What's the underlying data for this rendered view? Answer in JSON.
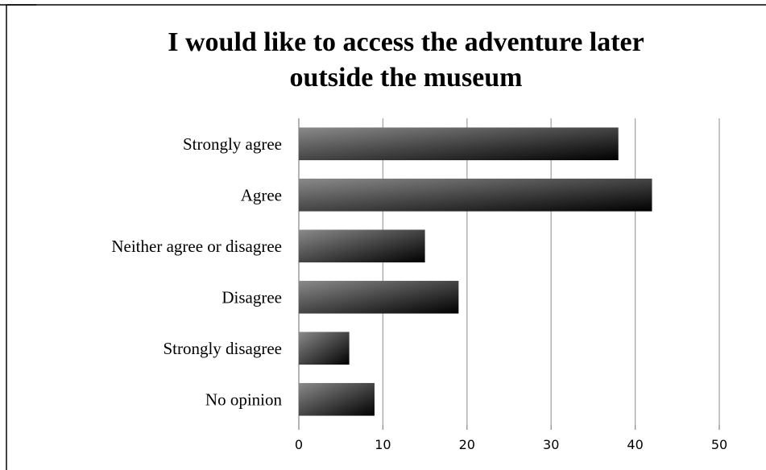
{
  "chart_data": {
    "type": "bar",
    "orientation": "horizontal",
    "title": "I would like to access the adventure later outside the museum",
    "title_lines": [
      "I would like to access the adventure later",
      "outside the museum"
    ],
    "categories": [
      "Strongly agree",
      "Agree",
      "Neither agree or disagree",
      "Disagree",
      "Strongly disagree",
      "No opinion"
    ],
    "values": [
      38,
      42,
      15,
      19,
      6,
      9
    ],
    "xlim": [
      0,
      50
    ],
    "x_ticks": [
      "0",
      "10",
      "20",
      "30",
      "40",
      "50"
    ],
    "grid": true,
    "legend": "none",
    "bar_gradient": [
      "#8a8a8a",
      "#000000"
    ]
  }
}
